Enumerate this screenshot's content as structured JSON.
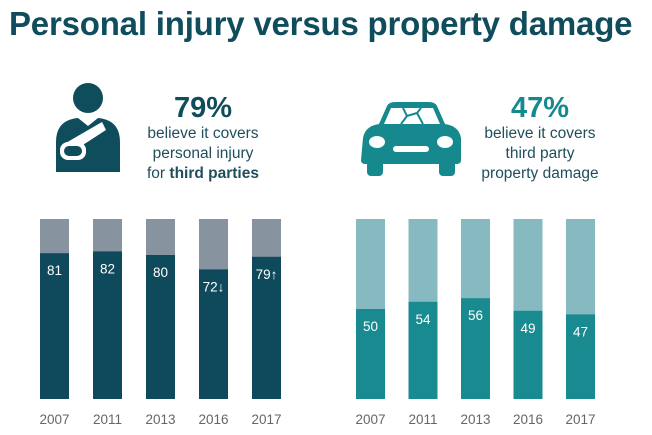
{
  "page": {
    "title": "Personal injury versus property damage"
  },
  "left_stat": {
    "pct": "79%",
    "line1": "believe it covers",
    "line2": "personal injury",
    "line3_prefix": "for ",
    "line3_bold": "third parties",
    "icon": "injured-person-icon"
  },
  "right_stat": {
    "pct": "47%",
    "line1": "believe it covers",
    "line2": "third party",
    "line3": "property damage",
    "icon": "crashed-car-icon"
  },
  "colors": {
    "dark_teal": "#0e4a5b",
    "grey": "#8794a0",
    "teal": "#198a8f",
    "light_teal": "#86b9c0",
    "year_text": "#666666"
  },
  "chart_data": [
    {
      "type": "bar",
      "name": "personal-injury",
      "stacked": true,
      "categories": [
        "2007",
        "2011",
        "2013",
        "2016",
        "2017"
      ],
      "values": [
        81,
        82,
        80,
        72,
        79
      ],
      "labels": [
        "81",
        "82",
        "80",
        "72↓",
        "79↑"
      ],
      "ylim": [
        0,
        100
      ]
    },
    {
      "type": "bar",
      "name": "property-damage",
      "stacked": true,
      "categories": [
        "2007",
        "2011",
        "2013",
        "2016",
        "2017"
      ],
      "values": [
        50,
        54,
        56,
        49,
        47
      ],
      "labels": [
        "50",
        "54",
        "56",
        "49",
        "47"
      ],
      "ylim": [
        0,
        100
      ]
    }
  ]
}
